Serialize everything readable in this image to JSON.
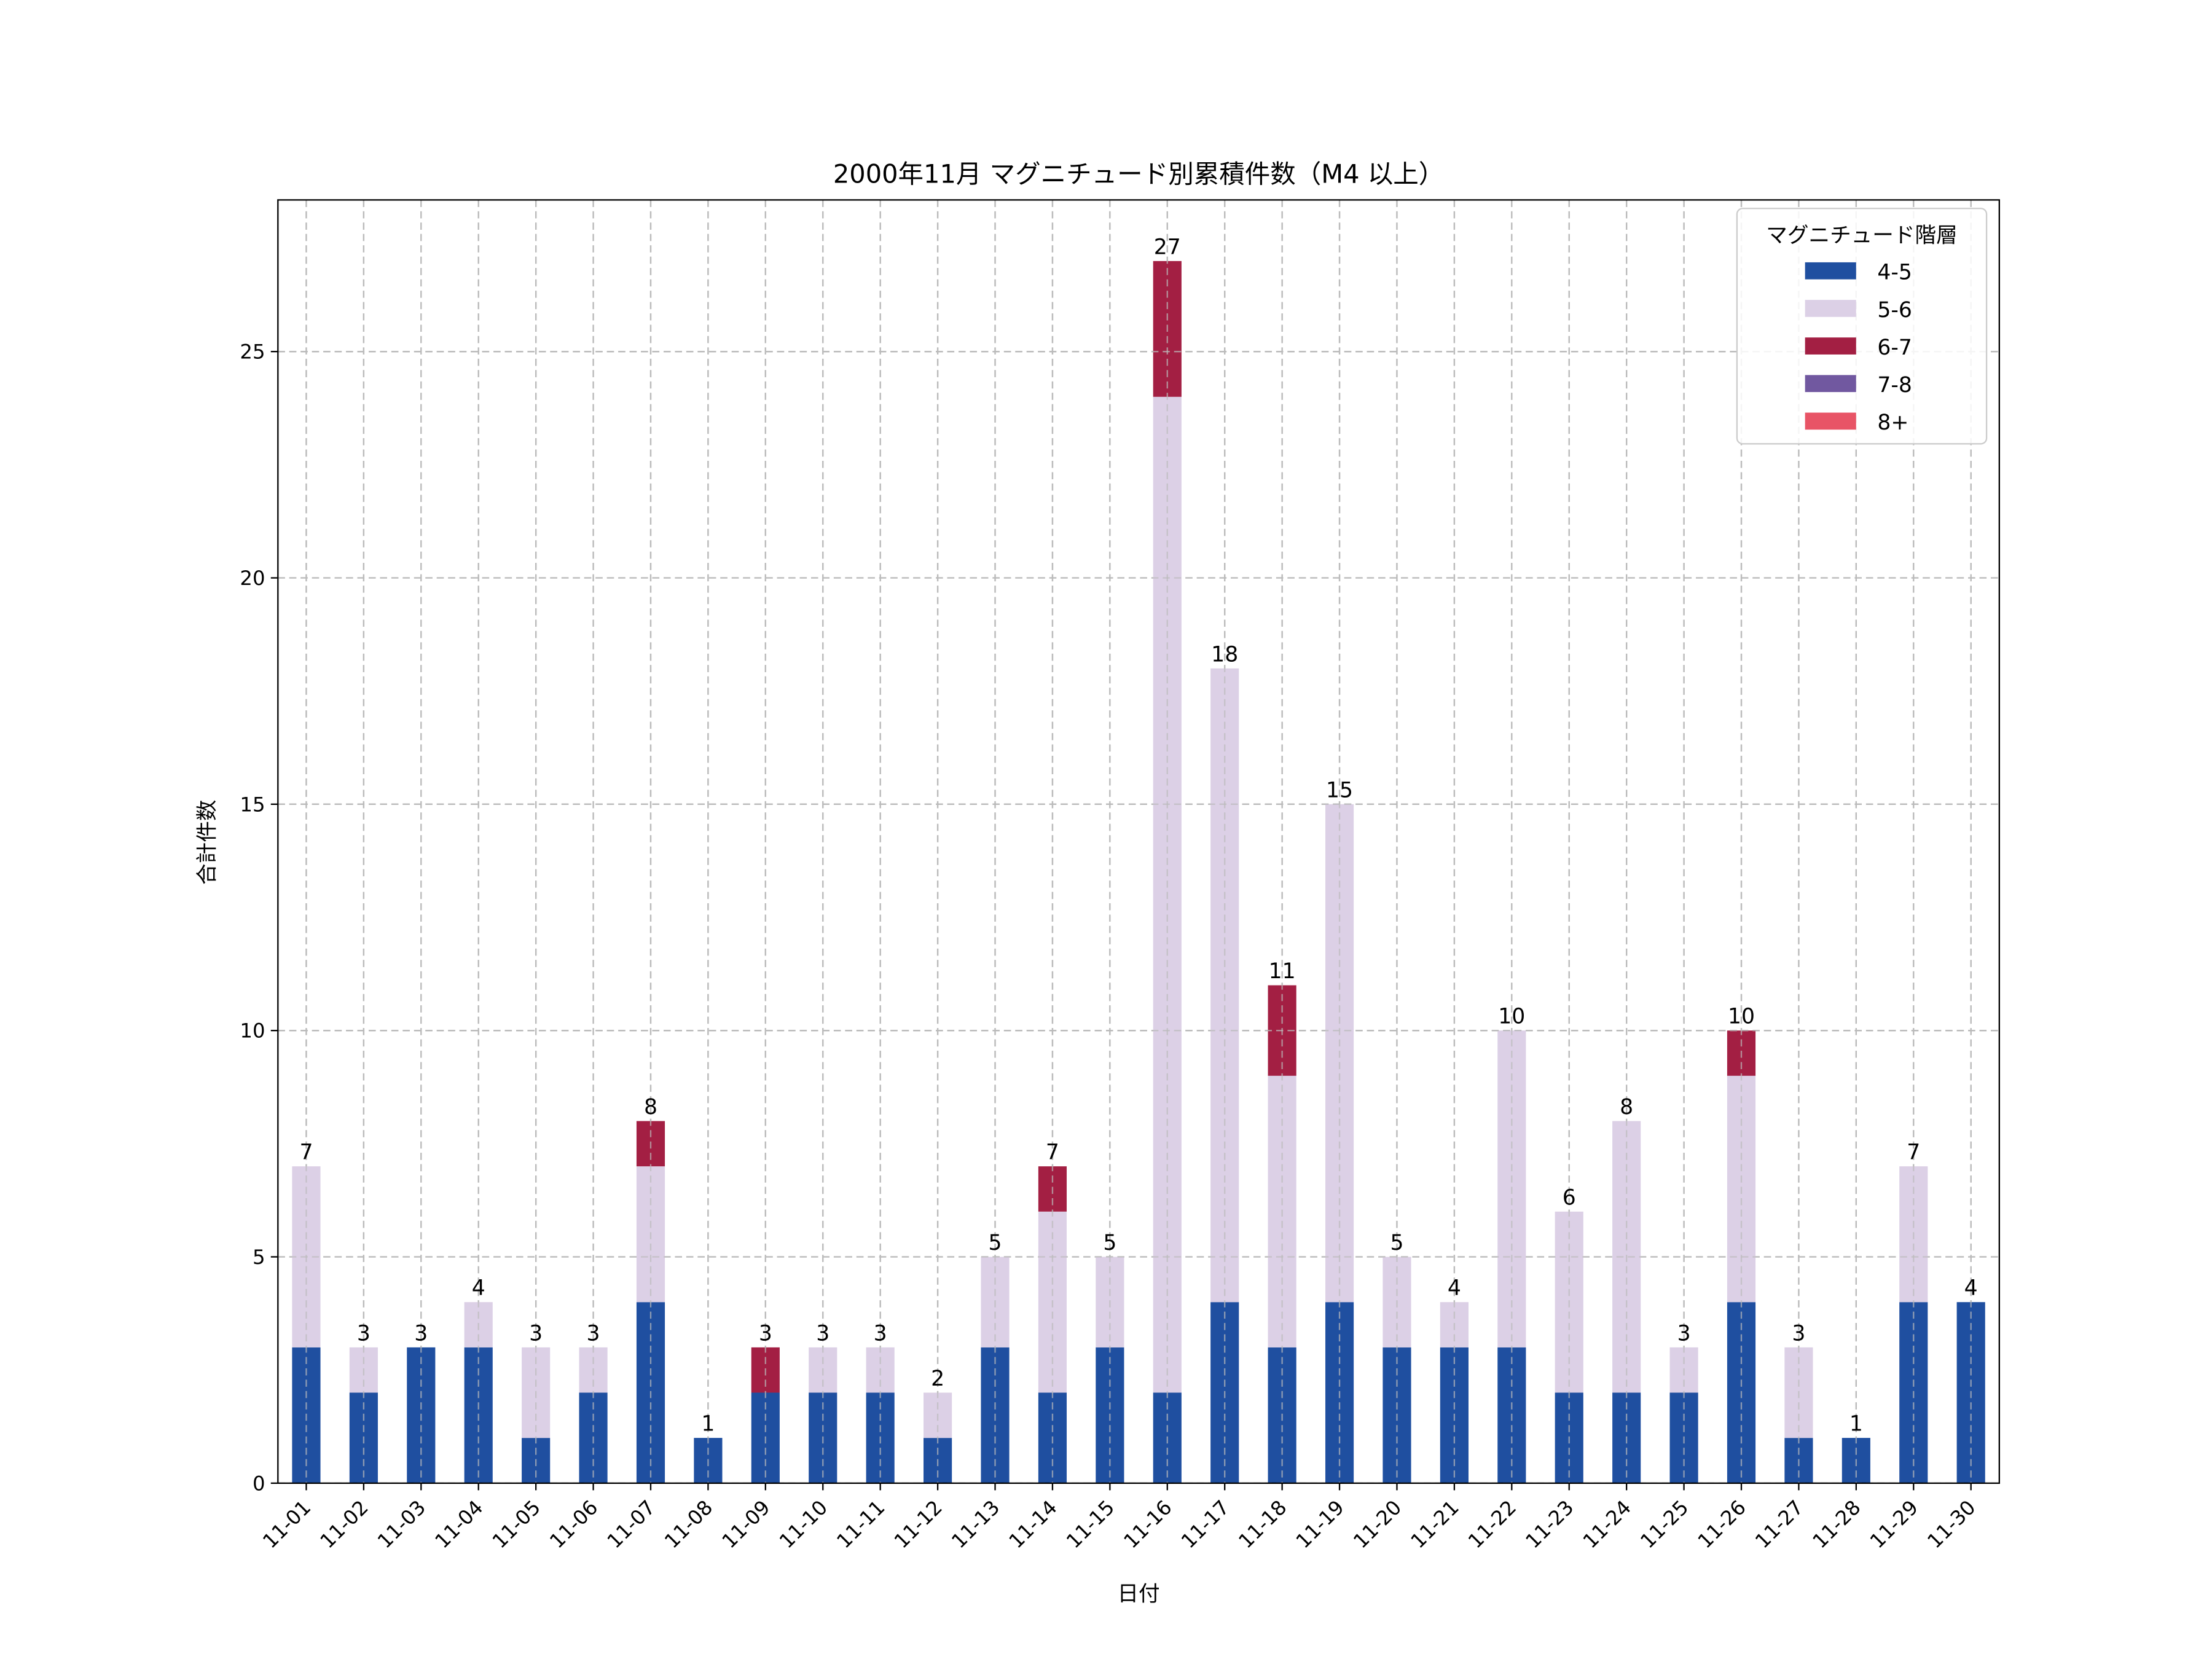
{
  "chart_data": {
    "type": "bar",
    "stacked": true,
    "title": "2000年11月 マグニチュード別累積件数（M4 以上）",
    "xlabel": "日付",
    "ylabel": "合計件数",
    "ylim": [
      0,
      28.35
    ],
    "yticks": [
      0,
      5,
      10,
      15,
      20,
      25
    ],
    "grid": true,
    "legend": {
      "title": "マグニチュード階層",
      "placement": "top-right"
    },
    "categories": [
      "11-01",
      "11-02",
      "11-03",
      "11-04",
      "11-05",
      "11-06",
      "11-07",
      "11-08",
      "11-09",
      "11-10",
      "11-11",
      "11-12",
      "11-13",
      "11-14",
      "11-15",
      "11-16",
      "11-17",
      "11-18",
      "11-19",
      "11-20",
      "11-21",
      "11-22",
      "11-23",
      "11-24",
      "11-25",
      "11-26",
      "11-27",
      "11-28",
      "11-29",
      "11-30"
    ],
    "series": [
      {
        "name": "4-5",
        "color": "#1f4fa0",
        "values": [
          3,
          2,
          3,
          3,
          1,
          2,
          4,
          1,
          2,
          2,
          2,
          1,
          3,
          2,
          3,
          2,
          4,
          3,
          4,
          3,
          3,
          3,
          2,
          2,
          2,
          4,
          1,
          1,
          4,
          4
        ]
      },
      {
        "name": "5-6",
        "color": "#dcd0e6",
        "values": [
          4,
          1,
          0,
          1,
          2,
          1,
          3,
          0,
          0,
          1,
          1,
          1,
          2,
          4,
          2,
          22,
          14,
          6,
          11,
          2,
          1,
          7,
          4,
          6,
          1,
          5,
          2,
          0,
          3,
          0
        ]
      },
      {
        "name": "6-7",
        "color": "#a31f43",
        "values": [
          0,
          0,
          0,
          0,
          0,
          0,
          1,
          0,
          1,
          0,
          0,
          0,
          0,
          1,
          0,
          3,
          0,
          2,
          0,
          0,
          0,
          0,
          0,
          0,
          0,
          1,
          0,
          0,
          0,
          0
        ]
      },
      {
        "name": "7-8",
        "color": "#7158a0",
        "values": [
          0,
          0,
          0,
          0,
          0,
          0,
          0,
          0,
          0,
          0,
          0,
          0,
          0,
          0,
          0,
          0,
          0,
          0,
          0,
          0,
          0,
          0,
          0,
          0,
          0,
          0,
          0,
          0,
          0,
          0
        ]
      },
      {
        "name": "8+",
        "color": "#e85466",
        "values": [
          0,
          0,
          0,
          0,
          0,
          0,
          0,
          0,
          0,
          0,
          0,
          0,
          0,
          0,
          0,
          0,
          0,
          0,
          0,
          0,
          0,
          0,
          0,
          0,
          0,
          0,
          0,
          0,
          0,
          0
        ]
      }
    ],
    "totals": [
      7,
      3,
      3,
      4,
      3,
      3,
      8,
      1,
      3,
      3,
      3,
      2,
      5,
      7,
      5,
      27,
      18,
      11,
      15,
      5,
      4,
      10,
      6,
      8,
      3,
      10,
      3,
      1,
      7,
      4
    ]
  }
}
